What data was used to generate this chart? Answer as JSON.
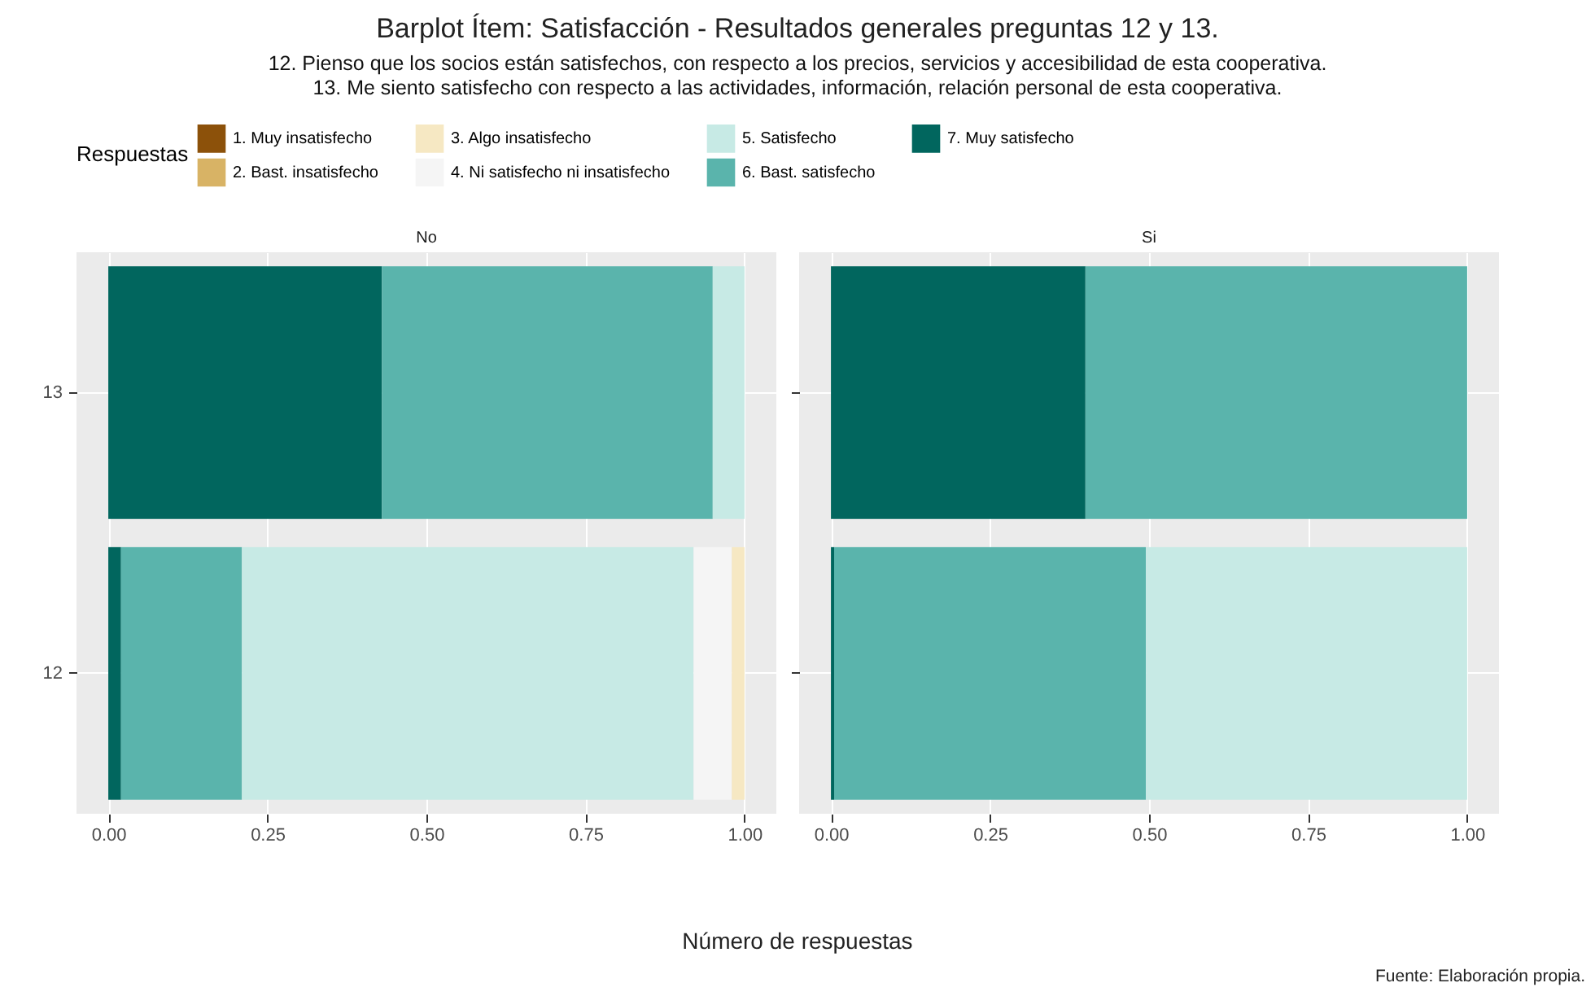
{
  "chart_data": [
    {
      "type": "bar",
      "orientation": "horizontal",
      "stacked": true,
      "title": "No",
      "legend_title": "Respuestas",
      "legend": "top",
      "grid": true,
      "xlabel": "Número de respuestas",
      "annotations": [
        "Barplot Ítem: Satisfacción - Resultados generales preguntas 12 y 13.",
        "12. Pienso que los socios están satisfechos, con respecto a los precios, servicios y accesibilidad de esta cooperativa.",
        "13. Me siento satisfecho con respecto a las actividades, información, relación personal de esta cooperativa.",
        "Fuente: Elaboración propia."
      ],
      "categories": [
        "13",
        "12"
      ],
      "xlim": [
        -0.05,
        1.05
      ],
      "xticks": [
        {
          "value": 0,
          "label": "0.00"
        },
        {
          "value": 0.25,
          "label": "0.25"
        },
        {
          "value": 0.5,
          "label": "0.50"
        },
        {
          "value": 0.75,
          "label": "0.75"
        },
        {
          "value": 1,
          "label": "1.00"
        }
      ],
      "series": [
        {
          "name": "7. Muy satisfecho",
          "color": "#01665e",
          "values": [
            0.43,
            0.02
          ]
        },
        {
          "name": "6. Bast. satisfecho",
          "color": "#5ab4ac",
          "values": [
            0.52,
            0.19
          ]
        },
        {
          "name": "5. Satisfecho",
          "color": "#c7eae5",
          "values": [
            0.05,
            0.71
          ]
        },
        {
          "name": "4. Ni satisfecho ni insatisfecho",
          "color": "#f5f5f5",
          "values": [
            0,
            0.06
          ]
        },
        {
          "name": "3. Algo insatisfecho",
          "color": "#f6e8c3",
          "values": [
            0,
            0.02
          ]
        },
        {
          "name": "2. Bast. insatisfecho",
          "color": "#d8b365",
          "values": [
            0,
            0
          ]
        },
        {
          "name": "1. Muy insatisfecho",
          "color": "#8c510a",
          "values": [
            0,
            0
          ]
        }
      ]
    },
    {
      "type": "bar",
      "orientation": "horizontal",
      "stacked": true,
      "title": "Si",
      "grid": true,
      "tick_labels": "x",
      "categories": [
        "13",
        "12"
      ],
      "xlim": [
        -0.05,
        1.05
      ],
      "xticks": [
        {
          "value": 0,
          "label": "0.00"
        },
        {
          "value": 0.25,
          "label": "0.25"
        },
        {
          "value": 0.5,
          "label": "0.50"
        },
        {
          "value": 0.75,
          "label": "0.75"
        },
        {
          "value": 1,
          "label": "1.00"
        }
      ],
      "series": [
        {
          "name": "7. Muy satisfecho",
          "color": "#01665e",
          "values": [
            0.4,
            0.005
          ]
        },
        {
          "name": "6. Bast. satisfecho",
          "color": "#5ab4ac",
          "values": [
            0.6,
            0.49
          ]
        },
        {
          "name": "5. Satisfecho",
          "color": "#c7eae5",
          "values": [
            0,
            0.505
          ]
        },
        {
          "name": "4. Ni satisfecho ni insatisfecho",
          "color": "#f5f5f5",
          "values": [
            0,
            0
          ]
        },
        {
          "name": "3. Algo insatisfecho",
          "color": "#f6e8c3",
          "values": [
            0,
            0
          ]
        }
      ]
    }
  ]
}
